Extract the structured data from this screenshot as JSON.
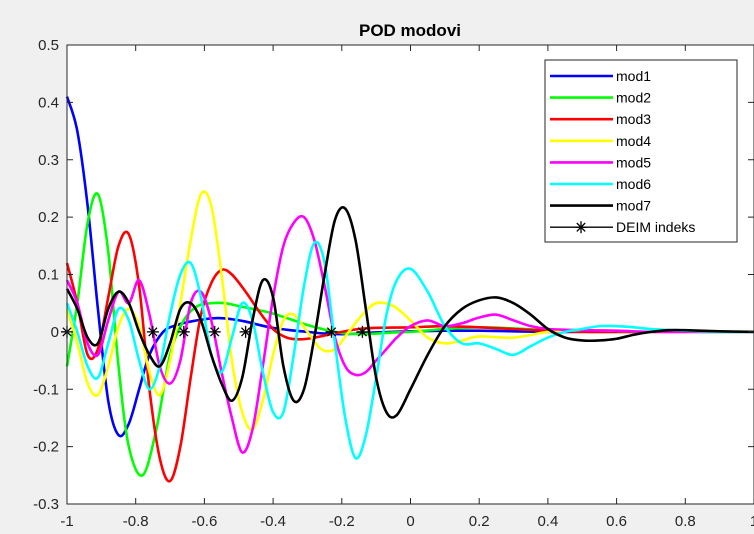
{
  "chart_data": {
    "type": "line",
    "title": "POD modovi",
    "xlabel": "",
    "ylabel": "",
    "xlim": [
      -1,
      1
    ],
    "ylim": [
      -0.3,
      0.5
    ],
    "xticks": [
      -1,
      -0.8,
      -0.6,
      -0.4,
      -0.2,
      0,
      0.2,
      0.4,
      0.6,
      0.8,
      1
    ],
    "xtick_labels": [
      "-1",
      "-0.8",
      "-0.6",
      "-0.4",
      "-0.2",
      "0",
      "0.2",
      "0.4",
      "0.6",
      "0.8",
      "1"
    ],
    "yticks": [
      -0.3,
      -0.2,
      -0.1,
      0,
      0.1,
      0.2,
      0.3,
      0.4,
      0.5
    ],
    "ytick_labels": [
      "-0.3",
      "-0.2",
      "-0.1",
      "0",
      "0.1",
      "0.2",
      "0.3",
      "0.4",
      "0.5"
    ],
    "grid": false,
    "legend_position": "top-right",
    "series": [
      {
        "name": "mod1",
        "color": "#0000ff",
        "x": [
          -1,
          -0.97,
          -0.94,
          -0.91,
          -0.88,
          -0.85,
          -0.82,
          -0.79,
          -0.76,
          -0.72,
          -0.68,
          -0.64,
          -0.6,
          -0.56,
          -0.52,
          -0.48,
          -0.44,
          -0.4,
          -0.35,
          -0.3,
          -0.25,
          -0.2,
          -0.15,
          -0.1,
          0,
          0.1,
          0.2,
          0.3,
          0.4,
          0.5,
          0.6,
          0.7,
          0.8,
          0.9,
          1
        ],
        "y": [
          0.41,
          0.35,
          0.22,
          0.04,
          -0.12,
          -0.18,
          -0.16,
          -0.1,
          -0.04,
          0.0,
          0.012,
          0.018,
          0.022,
          0.024,
          0.022,
          0.018,
          0.012,
          0.007,
          0.003,
          0.0,
          -0.003,
          -0.004,
          -0.003,
          -0.001,
          0.001,
          0.002,
          0.002,
          0.001,
          0.0,
          0.0,
          0.0,
          0.0,
          0.0,
          0.0,
          0.0
        ]
      },
      {
        "name": "mod2",
        "color": "#00ff00",
        "x": [
          -1,
          -0.97,
          -0.94,
          -0.91,
          -0.88,
          -0.85,
          -0.82,
          -0.78,
          -0.74,
          -0.7,
          -0.66,
          -0.62,
          -0.58,
          -0.54,
          -0.5,
          -0.46,
          -0.42,
          -0.38,
          -0.34,
          -0.3,
          -0.25,
          -0.2,
          -0.15,
          -0.1,
          -0.05,
          0,
          0.1,
          0.2,
          0.3,
          0.4,
          0.5,
          0.6,
          0.7,
          0.8,
          0.9,
          1
        ],
        "y": [
          -0.06,
          0.05,
          0.19,
          0.24,
          0.14,
          -0.06,
          -0.2,
          -0.25,
          -0.17,
          -0.04,
          0.02,
          0.045,
          0.05,
          0.05,
          0.045,
          0.04,
          0.035,
          0.028,
          0.02,
          0.012,
          0.004,
          -0.002,
          -0.004,
          -0.003,
          -0.001,
          0.0,
          0.005,
          0.008,
          0.006,
          0.003,
          0.001,
          0.0,
          0.0,
          0.0,
          0.0,
          0.0
        ]
      },
      {
        "name": "mod3",
        "color": "#ff0000",
        "x": [
          -1,
          -0.97,
          -0.94,
          -0.91,
          -0.88,
          -0.85,
          -0.82,
          -0.79,
          -0.76,
          -0.73,
          -0.7,
          -0.67,
          -0.64,
          -0.61,
          -0.58,
          -0.55,
          -0.52,
          -0.48,
          -0.44,
          -0.4,
          -0.36,
          -0.32,
          -0.28,
          -0.24,
          -0.2,
          -0.15,
          -0.1,
          0,
          0.1,
          0.2,
          0.3,
          0.4,
          0.5,
          0.6,
          0.7,
          0.8,
          0.9,
          1
        ],
        "y": [
          0.12,
          0.05,
          -0.04,
          -0.03,
          0.06,
          0.15,
          0.17,
          0.08,
          -0.1,
          -0.22,
          -0.26,
          -0.2,
          -0.08,
          0.03,
          0.085,
          0.108,
          0.1,
          0.07,
          0.035,
          0.005,
          -0.01,
          -0.013,
          -0.01,
          -0.005,
          0.0,
          0.005,
          0.007,
          0.008,
          0.01,
          0.008,
          0.005,
          0.002,
          0.0,
          0.0,
          0.0,
          0.0,
          0.0,
          0.0
        ]
      },
      {
        "name": "mod4",
        "color": "#ffff00",
        "x": [
          -1,
          -0.97,
          -0.94,
          -0.91,
          -0.88,
          -0.85,
          -0.82,
          -0.79,
          -0.76,
          -0.73,
          -0.7,
          -0.67,
          -0.64,
          -0.61,
          -0.58,
          -0.55,
          -0.52,
          -0.49,
          -0.46,
          -0.43,
          -0.4,
          -0.37,
          -0.34,
          -0.3,
          -0.26,
          -0.22,
          -0.18,
          -0.14,
          -0.1,
          -0.05,
          0,
          0.05,
          0.1,
          0.15,
          0.2,
          0.3,
          0.4,
          0.5,
          0.6,
          0.7,
          0.8,
          0.9,
          1
        ],
        "y": [
          0.04,
          -0.02,
          -0.09,
          -0.11,
          -0.06,
          0.01,
          0.04,
          0.01,
          -0.07,
          -0.11,
          -0.05,
          0.05,
          0.16,
          0.24,
          0.22,
          0.1,
          -0.05,
          -0.14,
          -0.17,
          -0.12,
          -0.04,
          0.02,
          0.03,
          0.0,
          -0.03,
          -0.03,
          0.0,
          0.03,
          0.05,
          0.045,
          0.02,
          -0.01,
          -0.02,
          -0.015,
          -0.008,
          -0.01,
          0.0,
          0.003,
          0.002,
          0.0,
          0.0,
          0.0,
          0.0
        ]
      },
      {
        "name": "mod5",
        "color": "#ff00ff",
        "x": [
          -1,
          -0.97,
          -0.94,
          -0.91,
          -0.88,
          -0.85,
          -0.82,
          -0.79,
          -0.76,
          -0.73,
          -0.7,
          -0.67,
          -0.64,
          -0.61,
          -0.58,
          -0.55,
          -0.52,
          -0.49,
          -0.46,
          -0.43,
          -0.4,
          -0.37,
          -0.34,
          -0.31,
          -0.28,
          -0.25,
          -0.22,
          -0.19,
          -0.16,
          -0.13,
          -0.1,
          -0.07,
          -0.04,
          0,
          0.05,
          0.1,
          0.15,
          0.2,
          0.25,
          0.3,
          0.35,
          0.4,
          0.5,
          0.6,
          0.7,
          0.8,
          0.9,
          1
        ],
        "y": [
          0.09,
          0.05,
          -0.02,
          -0.04,
          0.02,
          0.07,
          0.05,
          0.09,
          0.03,
          -0.06,
          -0.09,
          -0.05,
          0.05,
          0.07,
          0.02,
          -0.07,
          -0.15,
          -0.21,
          -0.17,
          -0.06,
          0.06,
          0.15,
          0.19,
          0.2,
          0.16,
          0.08,
          -0.01,
          -0.06,
          -0.075,
          -0.07,
          -0.05,
          -0.03,
          -0.01,
          0.01,
          0.02,
          0.01,
          0.015,
          0.025,
          0.03,
          0.02,
          0.01,
          0.005,
          0.003,
          0.002,
          0.0,
          0.0,
          0.0,
          0.0
        ]
      },
      {
        "name": "mod6",
        "color": "#00ffff",
        "x": [
          -1,
          -0.97,
          -0.94,
          -0.91,
          -0.88,
          -0.85,
          -0.82,
          -0.79,
          -0.76,
          -0.73,
          -0.7,
          -0.67,
          -0.64,
          -0.61,
          -0.58,
          -0.55,
          -0.52,
          -0.49,
          -0.46,
          -0.43,
          -0.4,
          -0.37,
          -0.34,
          -0.31,
          -0.28,
          -0.25,
          -0.22,
          -0.19,
          -0.16,
          -0.13,
          -0.1,
          -0.07,
          -0.04,
          0,
          0.05,
          0.1,
          0.15,
          0.2,
          0.25,
          0.3,
          0.35,
          0.4,
          0.45,
          0.5,
          0.55,
          0.6,
          0.65,
          0.7,
          0.8,
          0.9,
          1
        ],
        "y": [
          0.05,
          0.0,
          -0.06,
          -0.08,
          -0.02,
          0.04,
          0.02,
          -0.05,
          -0.1,
          -0.06,
          0.03,
          0.1,
          0.12,
          0.06,
          -0.04,
          -0.07,
          -0.01,
          0.05,
          0.02,
          -0.07,
          -0.14,
          -0.14,
          -0.04,
          0.08,
          0.155,
          0.12,
          -0.02,
          -0.15,
          -0.22,
          -0.18,
          -0.08,
          0.03,
          0.09,
          0.11,
          0.07,
          0.01,
          -0.02,
          -0.02,
          -0.03,
          -0.04,
          -0.025,
          -0.01,
          0.0,
          0.005,
          0.01,
          0.01,
          0.008,
          0.005,
          0.002,
          0.0,
          0.0
        ]
      },
      {
        "name": "mod7",
        "color": "#000000",
        "x": [
          -1,
          -0.97,
          -0.94,
          -0.91,
          -0.88,
          -0.85,
          -0.82,
          -0.79,
          -0.76,
          -0.73,
          -0.7,
          -0.67,
          -0.64,
          -0.61,
          -0.58,
          -0.55,
          -0.52,
          -0.49,
          -0.46,
          -0.43,
          -0.4,
          -0.37,
          -0.34,
          -0.31,
          -0.28,
          -0.25,
          -0.22,
          -0.19,
          -0.16,
          -0.13,
          -0.1,
          -0.07,
          -0.04,
          0,
          0.05,
          0.1,
          0.15,
          0.2,
          0.25,
          0.3,
          0.35,
          0.4,
          0.45,
          0.5,
          0.55,
          0.6,
          0.65,
          0.7,
          0.75,
          0.8,
          0.9,
          1
        ],
        "y": [
          0.075,
          0.04,
          -0.01,
          -0.02,
          0.04,
          0.07,
          0.05,
          0.0,
          -0.04,
          -0.06,
          -0.02,
          0.04,
          0.05,
          0.02,
          -0.04,
          -0.09,
          -0.12,
          -0.08,
          0.02,
          0.09,
          0.06,
          -0.06,
          -0.12,
          -0.1,
          -0.01,
          0.1,
          0.195,
          0.215,
          0.16,
          0.04,
          -0.08,
          -0.14,
          -0.145,
          -0.1,
          -0.04,
          0.01,
          0.04,
          0.055,
          0.06,
          0.05,
          0.03,
          0.005,
          -0.01,
          -0.015,
          -0.015,
          -0.012,
          -0.005,
          0.0,
          0.003,
          0.003,
          0.001,
          0.0
        ]
      }
    ],
    "markers": {
      "name": "DEIM indeks",
      "color": "#000000",
      "x": [
        -1,
        -0.75,
        -0.66,
        -0.57,
        -0.48,
        -0.23,
        -0.14
      ],
      "y": [
        0,
        0,
        0,
        0,
        0,
        0,
        0
      ]
    }
  }
}
